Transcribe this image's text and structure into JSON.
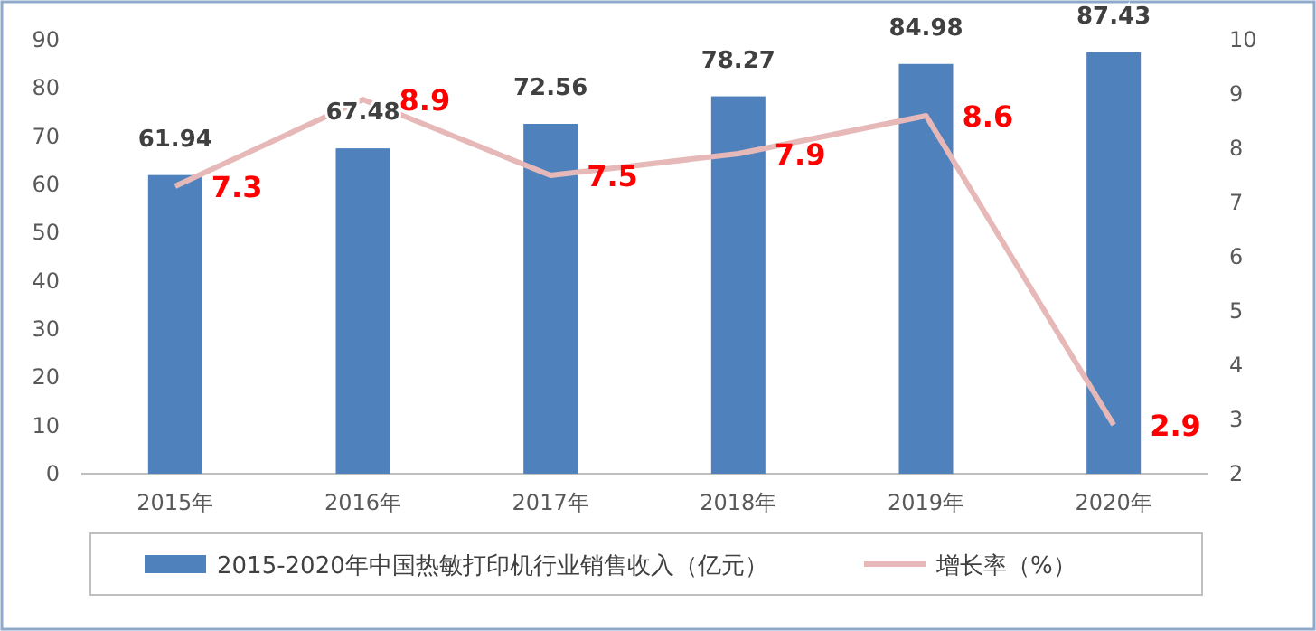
{
  "chart_data": {
    "type": "bar",
    "categories": [
      "2015年",
      "2016年",
      "2017年",
      "2018年",
      "2019年",
      "2020年"
    ],
    "series": [
      {
        "name": "2015-2020年中国热敏打印机行业销售收入（亿元）",
        "color": "#4f81bd",
        "values": [
          61.94,
          67.48,
          72.56,
          78.27,
          84.98,
          87.43
        ]
      },
      {
        "name": "增长率（%）",
        "type": "line",
        "axis": "y2",
        "color": "#e6b9b8",
        "values": [
          7.3,
          8.9,
          7.5,
          7.9,
          8.6,
          2.9
        ]
      }
    ],
    "ylim": [
      0,
      90
    ],
    "yticks": [
      0,
      10,
      20,
      30,
      40,
      50,
      60,
      70,
      80,
      90
    ],
    "y2lim": [
      2,
      10
    ],
    "y2ticks": [
      2,
      3,
      4,
      5,
      6,
      7,
      8,
      9,
      10
    ],
    "legend": "bottom",
    "data_labels": true
  }
}
